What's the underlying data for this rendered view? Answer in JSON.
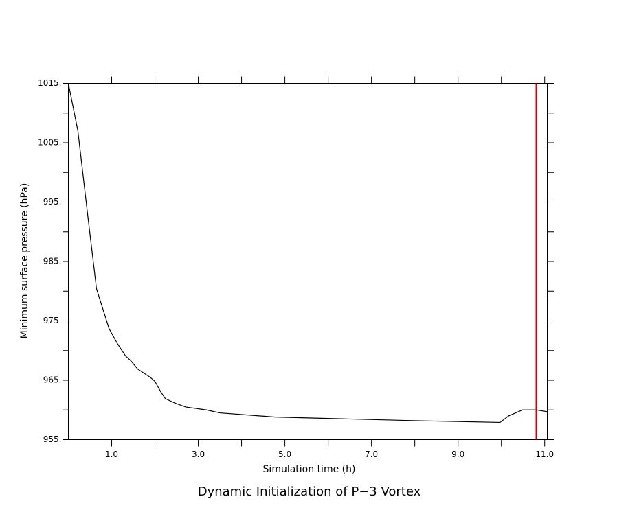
{
  "chart_data": {
    "type": "line",
    "title": "Dynamic Initialization of P−3 Vortex",
    "x_label": "Simulation time (h)",
    "y_label": "Minimum surface pressure (hPa)",
    "x": [
      0,
      0.22,
      0.33,
      0.46,
      0.65,
      0.94,
      1.13,
      1.32,
      1.44,
      1.6,
      1.89,
      2.0,
      2.13,
      2.24,
      2.48,
      2.71,
      3.19,
      3.5,
      4.78,
      6.37,
      7.95,
      9.97,
      10.17,
      10.49,
      10.81,
      11.06
    ],
    "series": [
      {
        "color": "#000000",
        "values": [
          1015,
          1007.0,
          1000.1,
          992.0,
          980.4,
          973.7,
          971.2,
          969.1,
          968.3,
          966.9,
          965.5,
          964.8,
          963.1,
          961.9,
          961.1,
          960.5,
          960.0,
          959.5,
          958.8,
          958.5,
          958.2,
          957.9,
          959.0,
          960.0,
          960.0,
          959.7
        ]
      }
    ],
    "xlim": [
      0,
      11.06
    ],
    "ylim": [
      955,
      1015
    ],
    "xticks": [
      {
        "value": 1,
        "label": "1.0"
      },
      {
        "value": 3,
        "label": "3.0"
      },
      {
        "value": 5,
        "label": "5.0"
      },
      {
        "value": 7,
        "label": "7.0"
      },
      {
        "value": 9,
        "label": "9.0"
      },
      {
        "value": 11,
        "label": "11.0"
      }
    ],
    "xminorticks": [
      2,
      4,
      6,
      8,
      10
    ],
    "yticks": [
      {
        "value": 955,
        "label": "955."
      },
      {
        "value": 965,
        "label": "965."
      },
      {
        "value": 975,
        "label": "975."
      },
      {
        "value": 985,
        "label": "985."
      },
      {
        "value": 995,
        "label": "995."
      },
      {
        "value": 1005,
        "label": "1005."
      },
      {
        "value": 1015,
        "label": "1015."
      }
    ],
    "yminorticks": [
      960,
      970,
      980,
      990,
      1000,
      1010
    ],
    "vline": {
      "x": 10.81,
      "color": "#e00000"
    },
    "grid": false
  }
}
